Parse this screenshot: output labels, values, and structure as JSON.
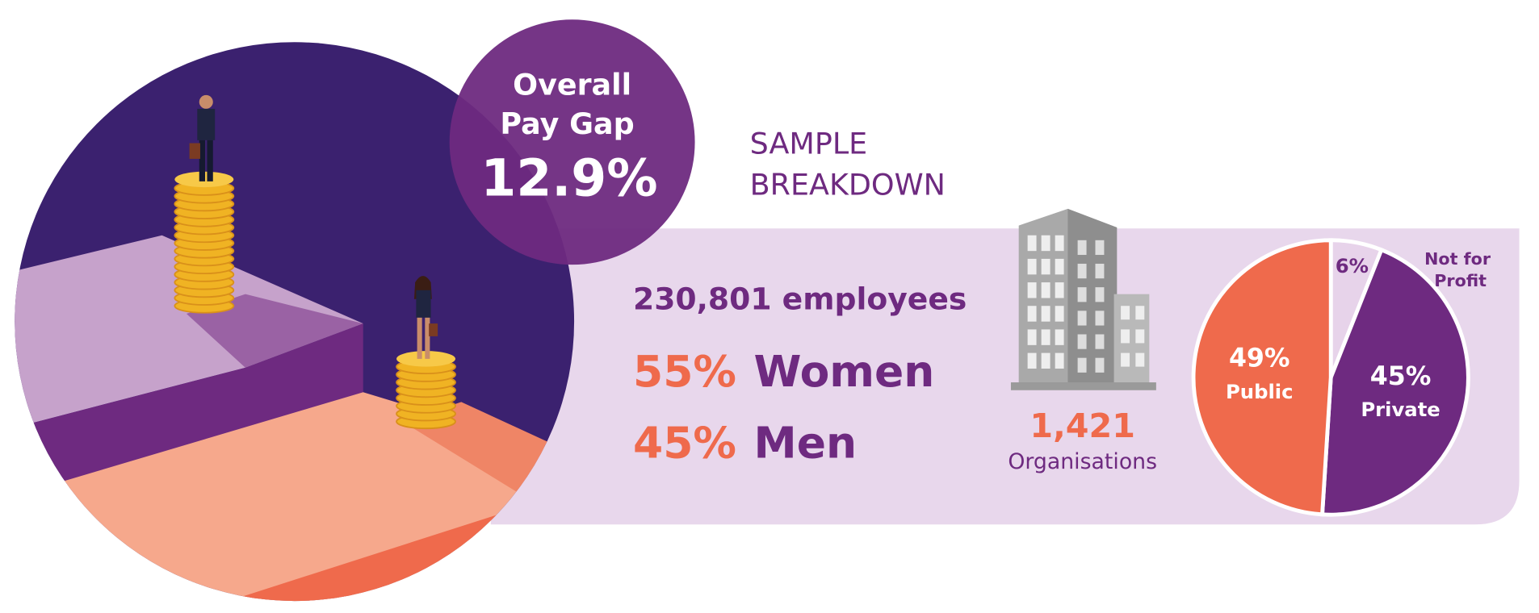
{
  "pay_gap": {
    "title_lines": [
      "Overall",
      "Pay Gap"
    ],
    "value": "12.9%"
  },
  "sample": {
    "title_lines": [
      "SAMPLE",
      "BREAKDOWN"
    ],
    "employees": "230,801 employees",
    "gender": [
      {
        "share": "55%",
        "label": "Women"
      },
      {
        "share": "45%",
        "label": "Men"
      }
    ],
    "organisations": {
      "count": "1,421",
      "label": "Organisations"
    }
  },
  "chart_data": {
    "type": "pie",
    "categories": [
      "Not for Profit",
      "Private",
      "Public"
    ],
    "values": [
      6,
      45,
      49
    ],
    "value_labels": [
      "6%",
      "45%",
      "49%"
    ],
    "colors": [
      "#e7d3ea",
      "#6e2a80",
      "#ef6a4c"
    ]
  }
}
